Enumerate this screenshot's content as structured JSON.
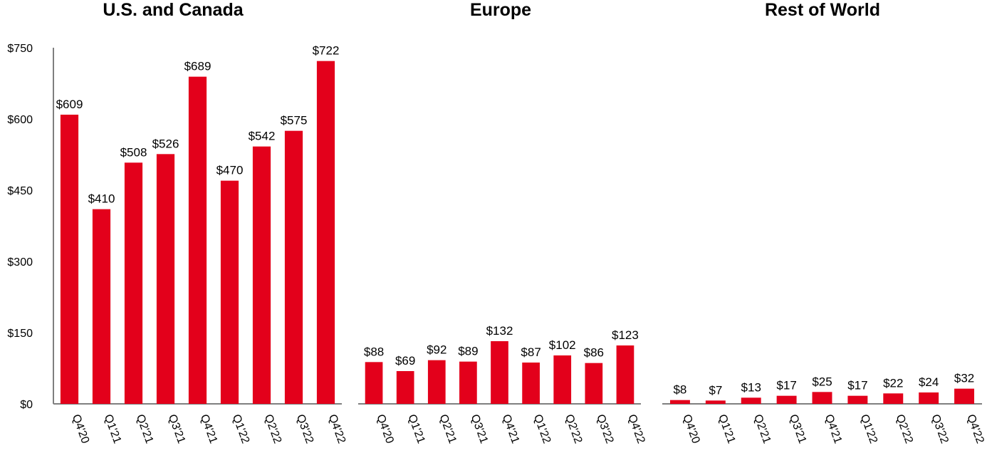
{
  "chart_data": [
    {
      "type": "bar",
      "title": "U.S. and Canada",
      "categories": [
        "Q4'20",
        "Q1'21",
        "Q2'21",
        "Q3'21",
        "Q4'21",
        "Q1'22",
        "Q2'22",
        "Q3'22",
        "Q4'22"
      ],
      "values": [
        609,
        410,
        508,
        526,
        689,
        470,
        542,
        575,
        722
      ],
      "data_labels": [
        "$609",
        "$410",
        "$508",
        "$526",
        "$689",
        "$470",
        "$542",
        "$575",
        "$722"
      ],
      "ylim": [
        0,
        750
      ],
      "yticks": [
        0,
        150,
        300,
        450,
        600,
        750
      ],
      "ytick_labels": [
        "$0",
        "$150",
        "$300",
        "$450",
        "$600",
        "$750"
      ],
      "xlabel": "",
      "ylabel": "",
      "grid": false,
      "color": "#e3001b"
    },
    {
      "type": "bar",
      "title": "Europe",
      "categories": [
        "Q4'20",
        "Q1'21",
        "Q2'21",
        "Q3'21",
        "Q4'21",
        "Q1'22",
        "Q2'22",
        "Q3'22",
        "Q4'22"
      ],
      "values": [
        88,
        69,
        92,
        89,
        132,
        87,
        102,
        86,
        123
      ],
      "data_labels": [
        "$88",
        "$69",
        "$92",
        "$89",
        "$132",
        "$87",
        "$102",
        "$86",
        "$123"
      ],
      "ylim": [
        0,
        750
      ],
      "xlabel": "",
      "ylabel": "",
      "grid": false,
      "color": "#e3001b"
    },
    {
      "type": "bar",
      "title": "Rest of World",
      "categories": [
        "Q4'20",
        "Q1'21",
        "Q2'21",
        "Q3'21",
        "Q4'21",
        "Q1'22",
        "Q2'22",
        "Q3'22",
        "Q4'22"
      ],
      "values": [
        8,
        7,
        13,
        17,
        25,
        17,
        22,
        24,
        32
      ],
      "data_labels": [
        "$8",
        "$7",
        "$13",
        "$17",
        "$25",
        "$17",
        "$22",
        "$24",
        "$32"
      ],
      "ylim": [
        0,
        750
      ],
      "xlabel": "",
      "ylabel": "",
      "grid": false,
      "color": "#e3001b"
    }
  ]
}
